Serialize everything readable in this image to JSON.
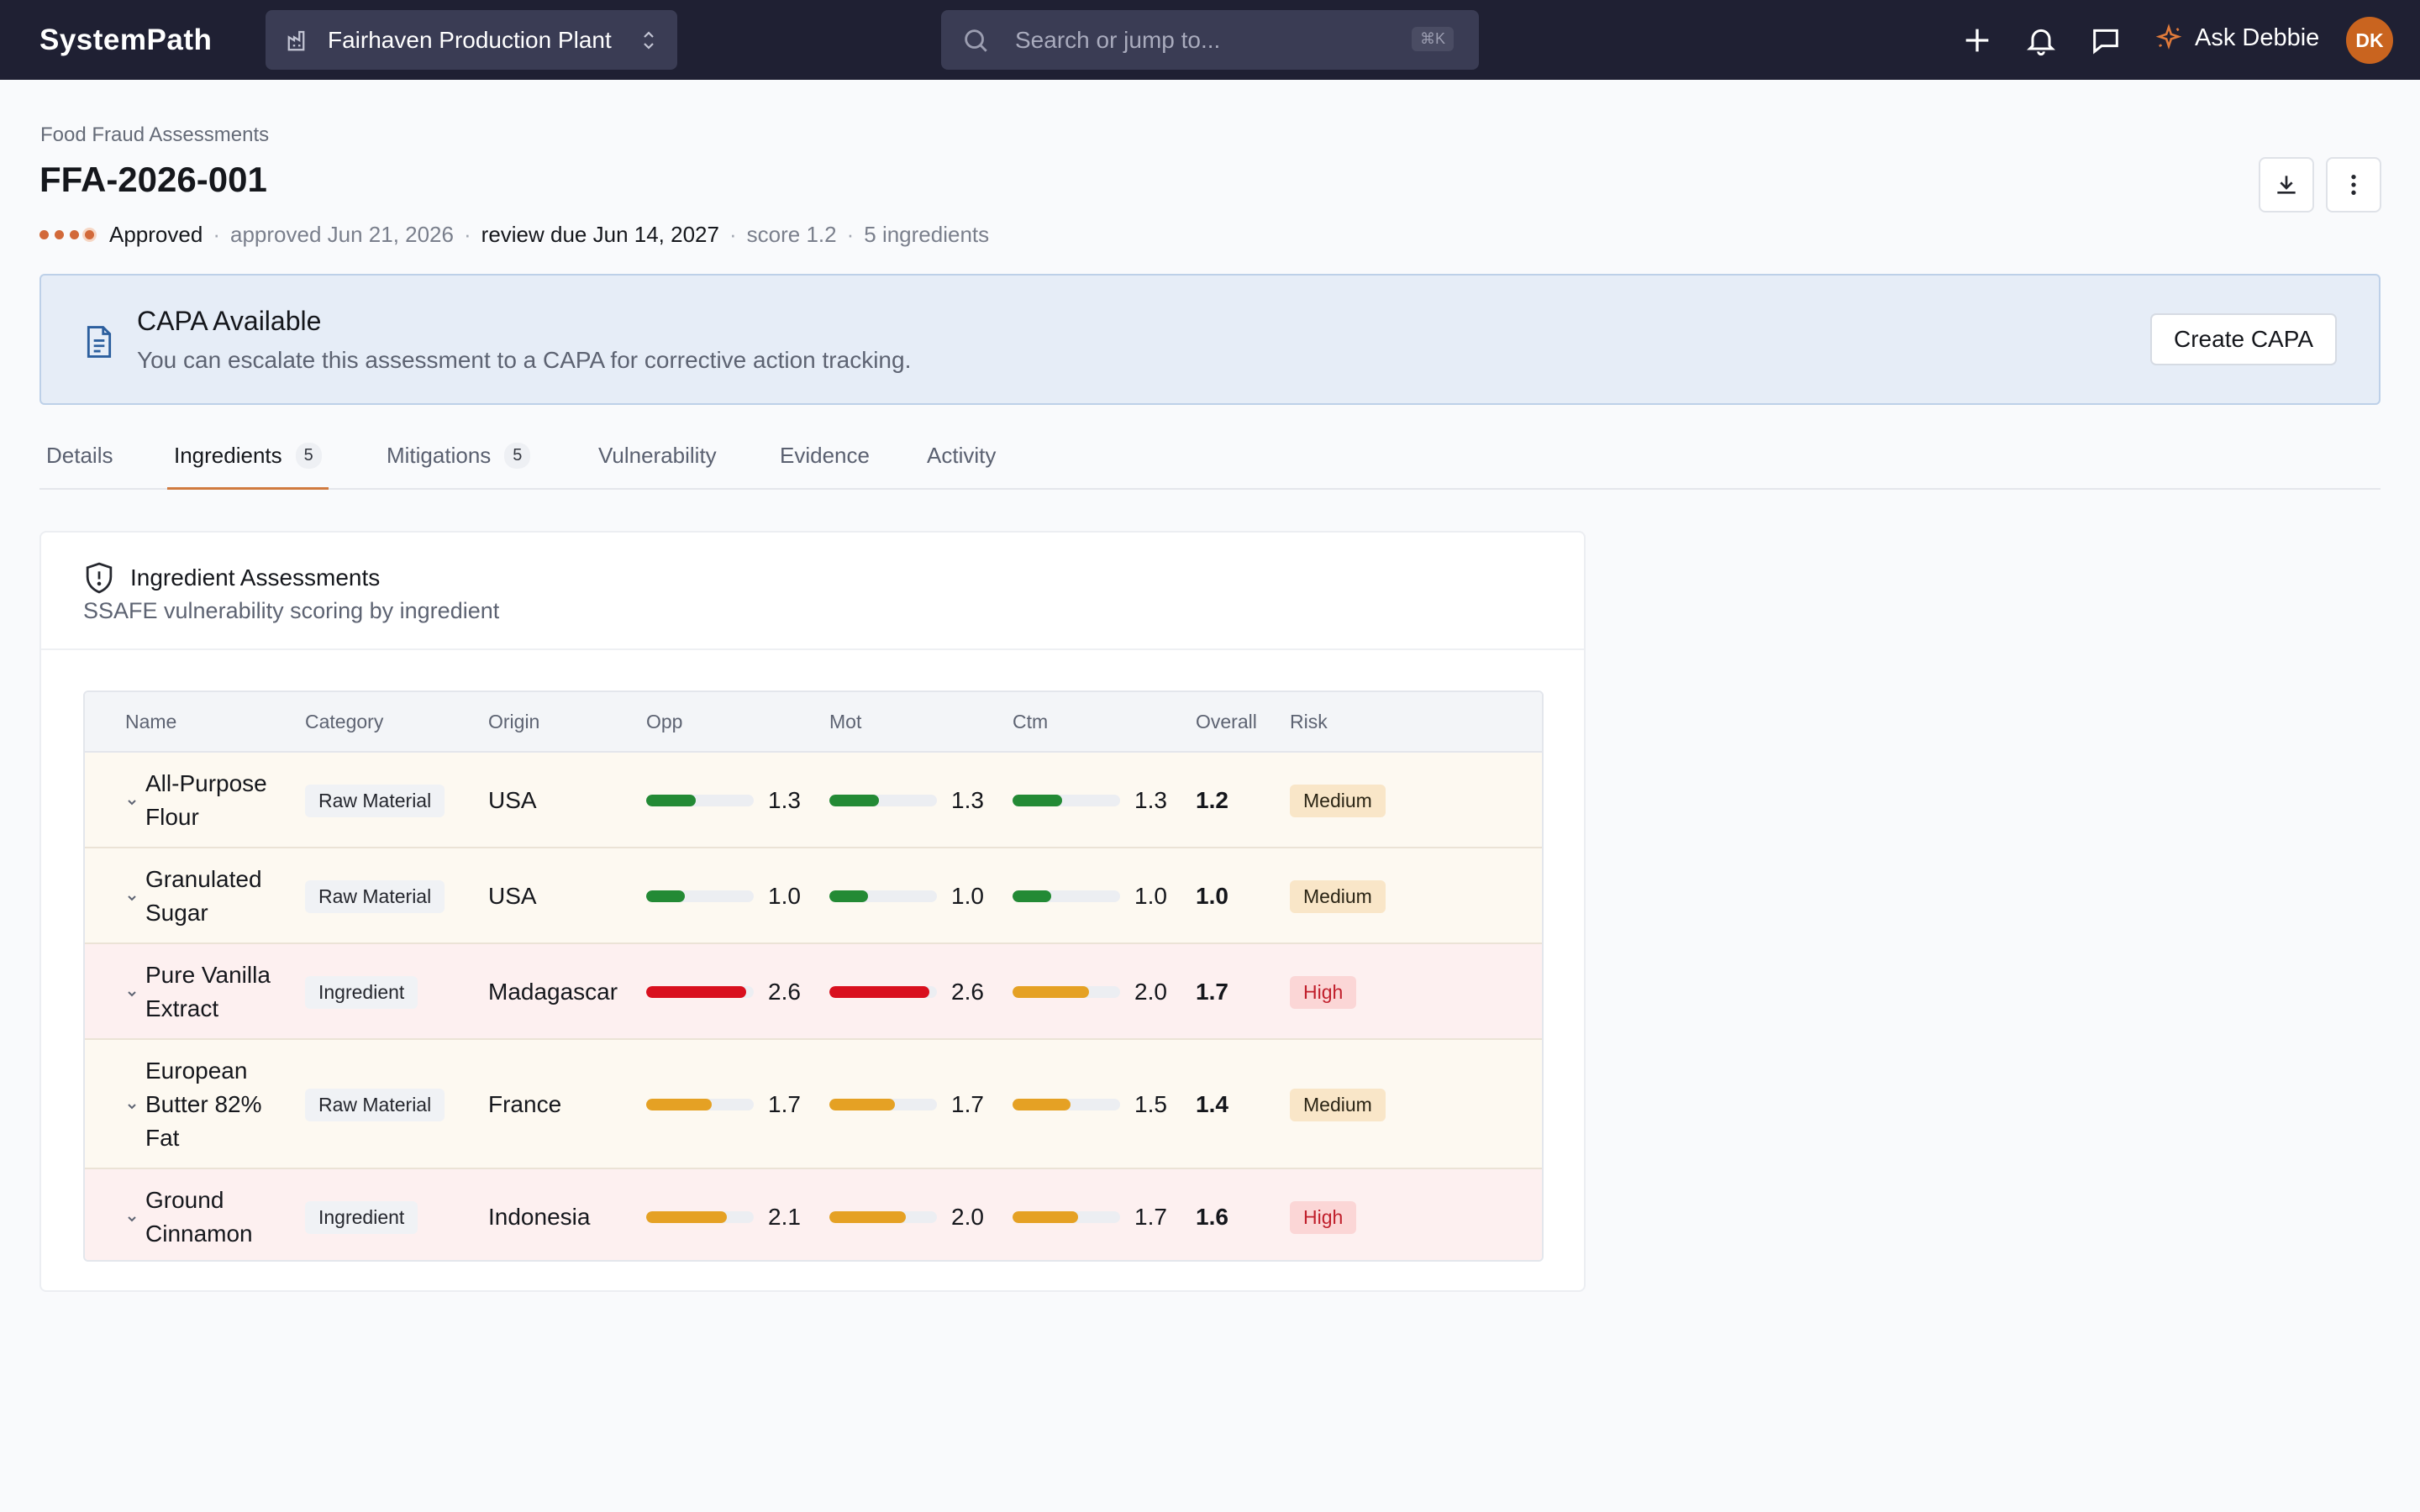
{
  "topbar": {
    "brand": "SystemPath",
    "plant": "Fairhaven Production Plant",
    "search_placeholder": "Search or jump to...",
    "search_shortcut": "⌘K",
    "ask_label": "Ask Debbie",
    "avatar_initials": "DK"
  },
  "header": {
    "breadcrumb": "Food Fraud Assessments",
    "title": "FFA-2026-001",
    "status": "Approved",
    "approved": "approved Jun 21, 2026",
    "review_due": "review due Jun 14, 2027",
    "score": "score 1.2",
    "ingredients_count": "5 ingredients"
  },
  "capa": {
    "title": "CAPA Available",
    "text": "You can escalate this assessment to a CAPA for corrective action tracking.",
    "button": "Create CAPA"
  },
  "tabs": [
    {
      "label": "Details"
    },
    {
      "label": "Ingredients",
      "count": "5"
    },
    {
      "label": "Mitigations",
      "count": "5"
    },
    {
      "label": "Vulnerability"
    },
    {
      "label": "Evidence"
    },
    {
      "label": "Activity"
    }
  ],
  "card": {
    "title": "Ingredient Assessments",
    "subtitle": "SSAFE vulnerability scoring by ingredient"
  },
  "table": {
    "columns": [
      "Name",
      "Category",
      "Origin",
      "Opp",
      "Mot",
      "Ctm",
      "Overall",
      "Risk"
    ],
    "rows": [
      {
        "name": "All-Purpose Flour",
        "category": "Raw Material",
        "origin": "USA",
        "opp": "1.3",
        "mot": "1.3",
        "ctm": "1.3",
        "overall": "1.2",
        "risk": "Medium"
      },
      {
        "name": "Granulated Sugar",
        "category": "Raw Material",
        "origin": "USA",
        "opp": "1.0",
        "mot": "1.0",
        "ctm": "1.0",
        "overall": "1.0",
        "risk": "Medium"
      },
      {
        "name": "Pure Vanilla Extract",
        "category": "Ingredient",
        "origin": "Madagascar",
        "opp": "2.6",
        "mot": "2.6",
        "ctm": "2.0",
        "overall": "1.7",
        "risk": "High"
      },
      {
        "name": "European Butter 82% Fat",
        "category": "Raw Material",
        "origin": "France",
        "opp": "1.7",
        "mot": "1.7",
        "ctm": "1.5",
        "overall": "1.4",
        "risk": "Medium"
      },
      {
        "name": "Ground Cinnamon",
        "category": "Ingredient",
        "origin": "Indonesia",
        "opp": "2.1",
        "mot": "2.0",
        "ctm": "1.7",
        "overall": "1.6",
        "risk": "High"
      }
    ]
  },
  "colors": {
    "bar_low": "#238a35",
    "bar_mid": "#e5a124",
    "bar_high": "#d9101e",
    "accent": "#d07a3f"
  }
}
